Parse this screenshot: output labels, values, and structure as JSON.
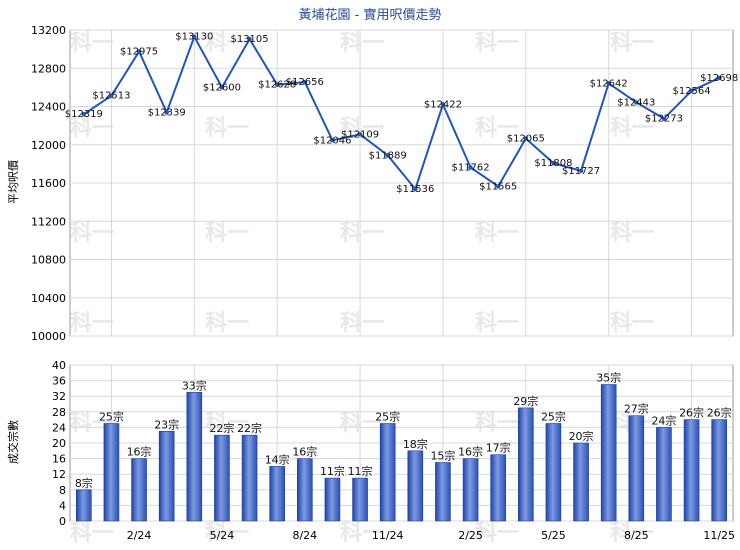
{
  "chart_data": [
    {
      "type": "line",
      "title": "黃埔花園 - 實用呎價走勢",
      "ylabel": "平均呎價",
      "ylim": [
        10000,
        13200
      ],
      "yticks": [
        "13200",
        "12800",
        "12400",
        "12000",
        "11600",
        "11200",
        "10800",
        "10400",
        "10000"
      ],
      "x_tick_labels": [
        "2/24",
        "5/24",
        "8/24",
        "11/24",
        "2/25",
        "5/25",
        "8/25",
        "11/25"
      ],
      "series": [
        {
          "values": [
            12319,
            12513,
            12975,
            12339,
            13130,
            12600,
            13105,
            12628,
            12656,
            12046,
            12109,
            11889,
            11536,
            12422,
            11762,
            11565,
            12065,
            11808,
            11727,
            12642,
            12443,
            12273,
            12564,
            12698
          ],
          "labels": [
            "$12319",
            "$12513",
            "$12975",
            "$12339",
            "$13130",
            "$12600",
            "$13105",
            "$12628",
            "$12656",
            "$12046",
            "$12109",
            "$11889",
            "$11536",
            "$12422",
            "$11762",
            "$11565",
            "$12065",
            "$11808",
            "$11727",
            "$12642",
            "$12443",
            "$12273",
            "$12564",
            "$12698"
          ],
          "color": "#2255bb"
        }
      ],
      "grid": true
    },
    {
      "type": "bar",
      "ylabel": "成交宗數",
      "ylim": [
        0,
        40
      ],
      "yticks": [
        "40",
        "36",
        "32",
        "28",
        "24",
        "20",
        "16",
        "12",
        "8",
        "4",
        "0"
      ],
      "x_tick_labels": [
        "2/24",
        "5/24",
        "8/24",
        "11/24",
        "2/25",
        "5/25",
        "8/25",
        "11/25"
      ],
      "values": [
        8,
        25,
        16,
        23,
        33,
        22,
        22,
        14,
        16,
        11,
        11,
        25,
        18,
        15,
        16,
        17,
        29,
        25,
        20,
        35,
        27,
        24,
        26,
        26
      ],
      "labels": [
        "8宗",
        "25宗",
        "16宗",
        "23宗",
        "33宗",
        "22宗",
        "22宗",
        "14宗",
        "16宗",
        "11宗",
        "11宗",
        "25宗",
        "18宗",
        "15宗",
        "16宗",
        "17宗",
        "29宗",
        "25宗",
        "20宗",
        "35宗",
        "27宗",
        "24宗",
        "26宗",
        "26宗"
      ],
      "color": "#3a66cc",
      "grid": true
    }
  ],
  "watermark": "科一"
}
